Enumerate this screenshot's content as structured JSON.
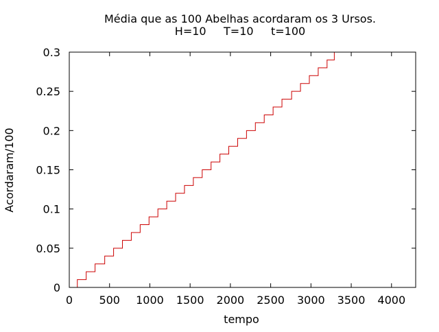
{
  "chart_data": {
    "type": "line",
    "title_line1": "Média que as 100 Abelhas acordaram os 3 Ursos.",
    "title_line2": "H=10     T=10     t=100",
    "xlabel": "tempo",
    "ylabel": "Acordaram/100",
    "xlim": [
      0,
      4300
    ],
    "ylim": [
      0,
      0.3
    ],
    "xticks": [
      0,
      500,
      1000,
      1500,
      2000,
      2500,
      3000,
      3500,
      4000
    ],
    "xtick_labels": [
      "0",
      "500",
      "1000",
      "1500",
      "2000",
      "2500",
      "3000",
      "3500",
      "4000"
    ],
    "yticks": [
      0,
      0.05,
      0.1,
      0.15,
      0.2,
      0.25,
      0.3
    ],
    "ytick_labels": [
      "0",
      "0.05",
      "0.1",
      "0.15",
      "0.2",
      "0.25",
      "0.3"
    ],
    "grid": false,
    "series": [
      {
        "color": "#cc0000",
        "style": "step",
        "x": [
          100,
          100,
          210,
          210,
          320,
          320,
          440,
          440,
          550,
          550,
          660,
          660,
          770,
          770,
          880,
          880,
          990,
          990,
          1100,
          1100,
          1210,
          1210,
          1320,
          1320,
          1430,
          1430,
          1540,
          1540,
          1650,
          1650,
          1760,
          1760,
          1870,
          1870,
          1980,
          1980,
          2090,
          2090,
          2200,
          2200,
          2310,
          2310,
          2420,
          2420,
          2530,
          2530,
          2640,
          2640,
          2760,
          2760,
          2870,
          2870,
          2980,
          2980,
          3090,
          3090,
          3200,
          3200,
          3290,
          3290,
          3300
        ],
        "y": [
          0,
          0.01,
          0.01,
          0.02,
          0.02,
          0.03,
          0.03,
          0.04,
          0.04,
          0.05,
          0.05,
          0.06,
          0.06,
          0.07,
          0.07,
          0.08,
          0.08,
          0.09,
          0.09,
          0.1,
          0.1,
          0.11,
          0.11,
          0.12,
          0.12,
          0.13,
          0.13,
          0.14,
          0.14,
          0.15,
          0.15,
          0.16,
          0.16,
          0.17,
          0.17,
          0.18,
          0.18,
          0.19,
          0.19,
          0.2,
          0.2,
          0.21,
          0.21,
          0.22,
          0.22,
          0.23,
          0.23,
          0.24,
          0.24,
          0.25,
          0.25,
          0.26,
          0.26,
          0.27,
          0.27,
          0.28,
          0.28,
          0.29,
          0.29,
          0.3,
          0.3
        ]
      }
    ]
  }
}
